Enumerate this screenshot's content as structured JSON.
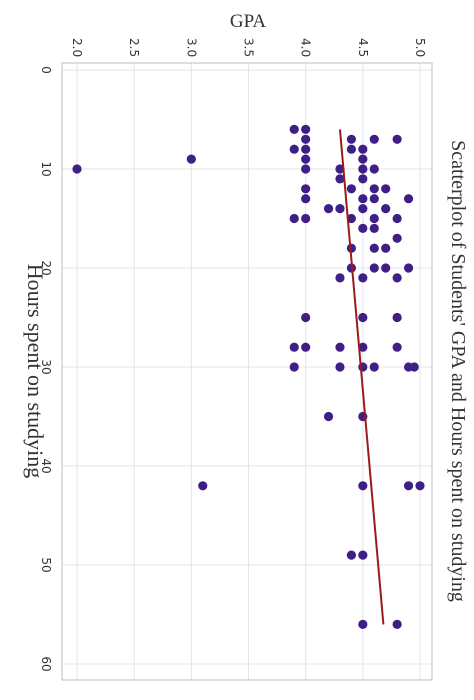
{
  "chart_data": {
    "type": "scatter",
    "title": "Scatterplot of Students' GPA and Hours spent on studying",
    "xlabel": "Hours spent on studying",
    "ylabel": "GPA",
    "xlim": [
      0,
      60
    ],
    "ylim": [
      2,
      5
    ],
    "x_ticks": [
      "0",
      "10",
      "20",
      "30",
      "40",
      "50",
      "60"
    ],
    "y_ticks": [
      "2.0",
      "2.5",
      "3.0",
      "3.5",
      "4.0",
      "4.5",
      "5.0"
    ],
    "grid": true,
    "orientation": "rotated 90° clockwise",
    "colors": {
      "point": "#3f1f86",
      "trend": "#9b1b1b",
      "grid": "#e4e4ea",
      "frame": "#bdbdbd",
      "text": "#333333"
    },
    "points": [
      [
        6,
        3.9
      ],
      [
        6,
        4.0
      ],
      [
        7,
        4.0
      ],
      [
        8,
        3.9
      ],
      [
        8,
        4.0
      ],
      [
        9,
        4.0
      ],
      [
        10,
        4.0
      ],
      [
        12,
        4.0
      ],
      [
        13,
        4.0
      ],
      [
        15,
        3.9
      ],
      [
        15,
        4.0
      ],
      [
        7,
        4.4
      ],
      [
        7,
        4.6
      ],
      [
        7,
        4.8
      ],
      [
        8,
        4.4
      ],
      [
        8,
        4.5
      ],
      [
        9,
        4.5
      ],
      [
        10,
        4.3
      ],
      [
        10,
        4.5
      ],
      [
        10,
        4.6
      ],
      [
        11,
        4.3
      ],
      [
        11,
        4.5
      ],
      [
        12,
        4.4
      ],
      [
        12,
        4.6
      ],
      [
        12,
        4.7
      ],
      [
        13,
        4.5
      ],
      [
        13,
        4.6
      ],
      [
        13,
        4.9
      ],
      [
        14,
        4.2
      ],
      [
        14,
        4.3
      ],
      [
        14,
        4.5
      ],
      [
        14,
        4.7
      ],
      [
        15,
        4.4
      ],
      [
        15,
        4.6
      ],
      [
        15,
        4.8
      ],
      [
        16,
        4.5
      ],
      [
        16,
        4.6
      ],
      [
        17,
        4.8
      ],
      [
        18,
        4.4
      ],
      [
        18,
        4.6
      ],
      [
        18,
        4.7
      ],
      [
        20,
        4.4
      ],
      [
        20,
        4.6
      ],
      [
        20,
        4.7
      ],
      [
        20,
        4.9
      ],
      [
        21,
        4.3
      ],
      [
        21,
        4.5
      ],
      [
        21,
        4.8
      ],
      [
        25,
        4.0
      ],
      [
        25,
        4.5
      ],
      [
        25,
        4.8
      ],
      [
        28,
        3.9
      ],
      [
        28,
        4.0
      ],
      [
        28,
        4.3
      ],
      [
        28,
        4.5
      ],
      [
        28,
        4.8
      ],
      [
        30,
        3.9
      ],
      [
        30,
        4.3
      ],
      [
        30,
        4.5
      ],
      [
        30,
        4.6
      ],
      [
        30,
        4.9
      ],
      [
        30,
        4.95
      ],
      [
        10,
        2.0
      ],
      [
        9,
        3.0
      ],
      [
        35,
        4.2
      ],
      [
        35,
        4.5
      ],
      [
        42,
        3.1
      ],
      [
        42,
        4.5
      ],
      [
        42,
        4.9
      ],
      [
        42,
        5.0
      ],
      [
        49,
        4.4
      ],
      [
        49,
        4.5
      ],
      [
        56,
        4.5
      ],
      [
        56,
        4.8
      ]
    ],
    "trendline": [
      [
        6,
        4.3
      ],
      [
        56,
        4.68
      ]
    ]
  }
}
